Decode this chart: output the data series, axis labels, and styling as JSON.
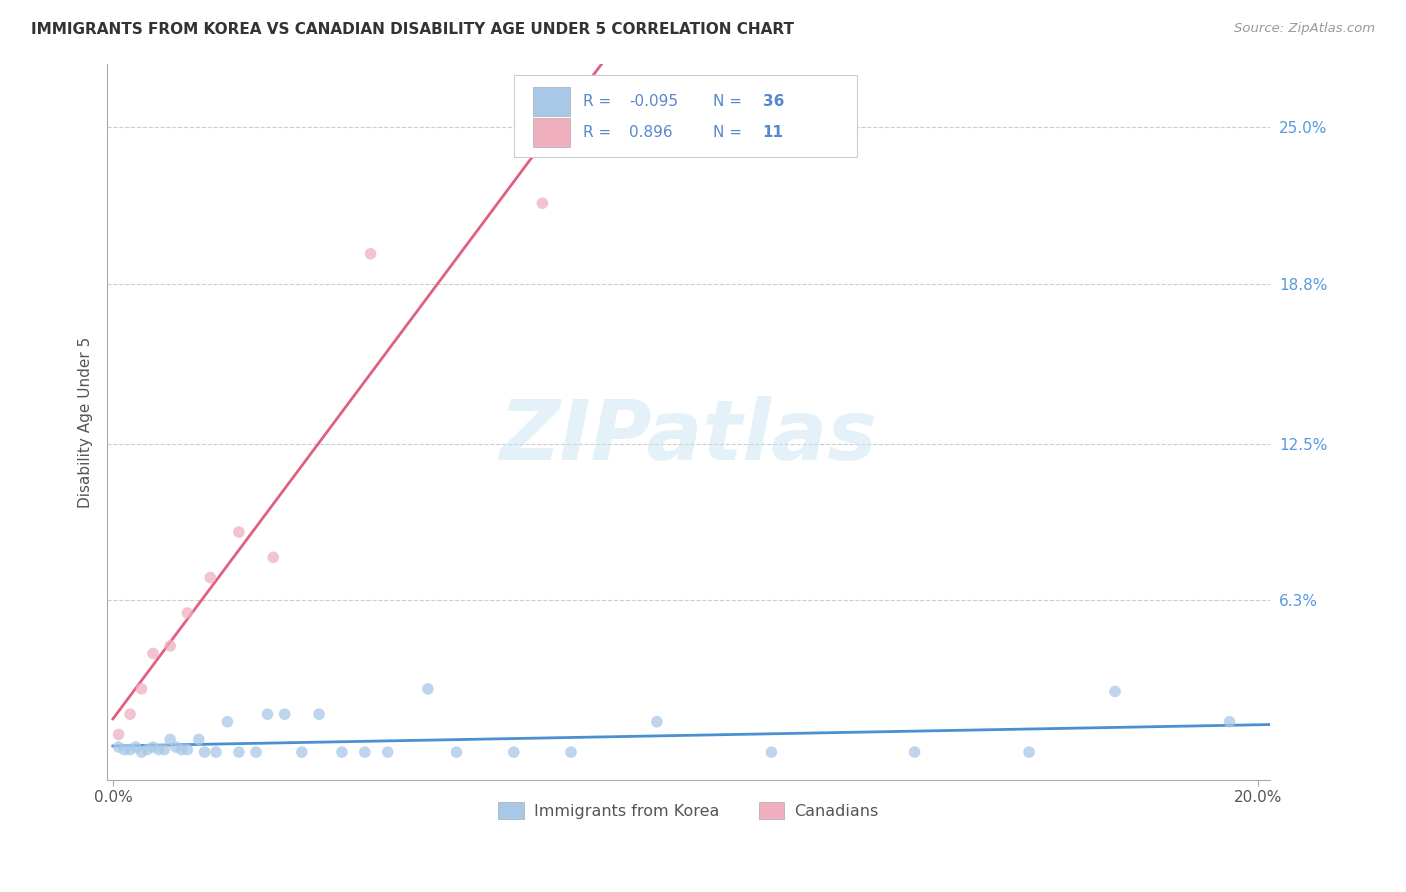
{
  "title": "IMMIGRANTS FROM KOREA VS CANADIAN DISABILITY AGE UNDER 5 CORRELATION CHART",
  "source": "Source: ZipAtlas.com",
  "ylabel": "Disability Age Under 5",
  "xlim": [
    -0.001,
    0.202
  ],
  "ylim": [
    -0.008,
    0.275
  ],
  "ytick_positions": [
    0.063,
    0.125,
    0.188,
    0.25
  ],
  "ytick_labels": [
    "6.3%",
    "12.5%",
    "18.8%",
    "25.0%"
  ],
  "xtick_positions": [
    0.0,
    0.2
  ],
  "xtick_labels": [
    "0.0%",
    "20.0%"
  ],
  "background_color": "#ffffff",
  "watermark_text": "ZIPatlas",
  "legend_label1": "Immigrants from Korea",
  "legend_label2": "Canadians",
  "korea_scatter_color": "#a8c8e8",
  "canadian_scatter_color": "#f0b0c0",
  "korea_line_color": "#4a90d0",
  "canadian_line_color": "#e06080",
  "scatter_size": 70,
  "scatter_alpha": 0.75,
  "grid_color": "#cccccc",
  "korea_x": [
    0.001,
    0.002,
    0.003,
    0.004,
    0.005,
    0.006,
    0.007,
    0.008,
    0.009,
    0.01,
    0.011,
    0.012,
    0.013,
    0.015,
    0.016,
    0.018,
    0.02,
    0.022,
    0.025,
    0.027,
    0.03,
    0.033,
    0.036,
    0.04,
    0.044,
    0.048,
    0.055,
    0.06,
    0.07,
    0.08,
    0.095,
    0.115,
    0.14,
    0.16,
    0.175,
    0.195
  ],
  "korea_y": [
    0.005,
    0.004,
    0.004,
    0.005,
    0.003,
    0.004,
    0.005,
    0.004,
    0.004,
    0.008,
    0.005,
    0.004,
    0.004,
    0.008,
    0.003,
    0.003,
    0.015,
    0.003,
    0.003,
    0.018,
    0.018,
    0.003,
    0.018,
    0.003,
    0.003,
    0.003,
    0.028,
    0.003,
    0.003,
    0.003,
    0.015,
    0.003,
    0.003,
    0.003,
    0.027,
    0.015
  ],
  "canadian_x": [
    0.001,
    0.003,
    0.005,
    0.007,
    0.01,
    0.013,
    0.017,
    0.022,
    0.028,
    0.045,
    0.075
  ],
  "canadian_y": [
    0.01,
    0.018,
    0.028,
    0.042,
    0.045,
    0.058,
    0.072,
    0.09,
    0.08,
    0.2,
    0.22
  ]
}
